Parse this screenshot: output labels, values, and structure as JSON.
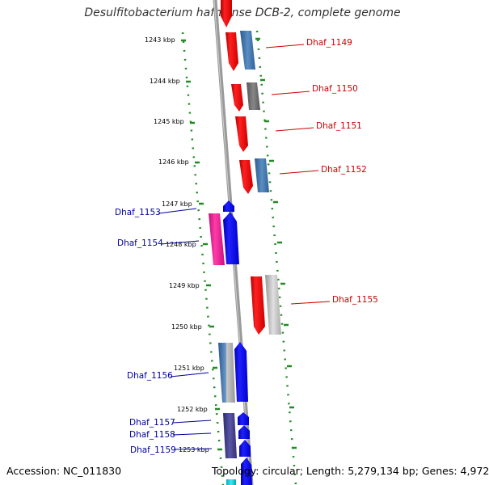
{
  "title": "Desulfitobacterium hafniense DCB-2, complete genome",
  "footer": {
    "accession": "Accession: NC_011830",
    "topology": "Topology: circular; Length: 5,279,134 bp; Genes: 4,972"
  },
  "ruler_ticks": [
    "1243 kbp",
    "1244 kbp",
    "1245 kbp",
    "1246 kbp",
    "1247 kbp",
    "1248 kbp",
    "1249 kbp",
    "1250 kbp",
    "1251 kbp",
    "1252 kbp",
    "1253 kbp"
  ],
  "gene_labels": [
    {
      "name": "Dhaf_1149",
      "side": "right",
      "color": "#cc0000"
    },
    {
      "name": "Dhaf_1150",
      "side": "right",
      "color": "#cc0000"
    },
    {
      "name": "Dhaf_1151",
      "side": "right",
      "color": "#cc0000"
    },
    {
      "name": "Dhaf_1152",
      "side": "right",
      "color": "#cc0000"
    },
    {
      "name": "Dhaf_1153",
      "side": "left",
      "color": "#00009c"
    },
    {
      "name": "Dhaf_1154",
      "side": "left",
      "color": "#00009c"
    },
    {
      "name": "Dhaf_1155",
      "side": "right",
      "color": "#cc0000"
    },
    {
      "name": "Dhaf_1156",
      "side": "left",
      "color": "#00009c"
    },
    {
      "name": "Dhaf_1157",
      "side": "left",
      "color": "#00009c"
    },
    {
      "name": "Dhaf_1158",
      "side": "left",
      "color": "#00009c"
    },
    {
      "name": "Dhaf_1159",
      "side": "left",
      "color": "#00009c"
    }
  ],
  "colors": {
    "forward_strand": "#ff0000",
    "reverse_strand": "#0000ff",
    "backbone": "#888888",
    "ruler_dots": "#228b22"
  }
}
